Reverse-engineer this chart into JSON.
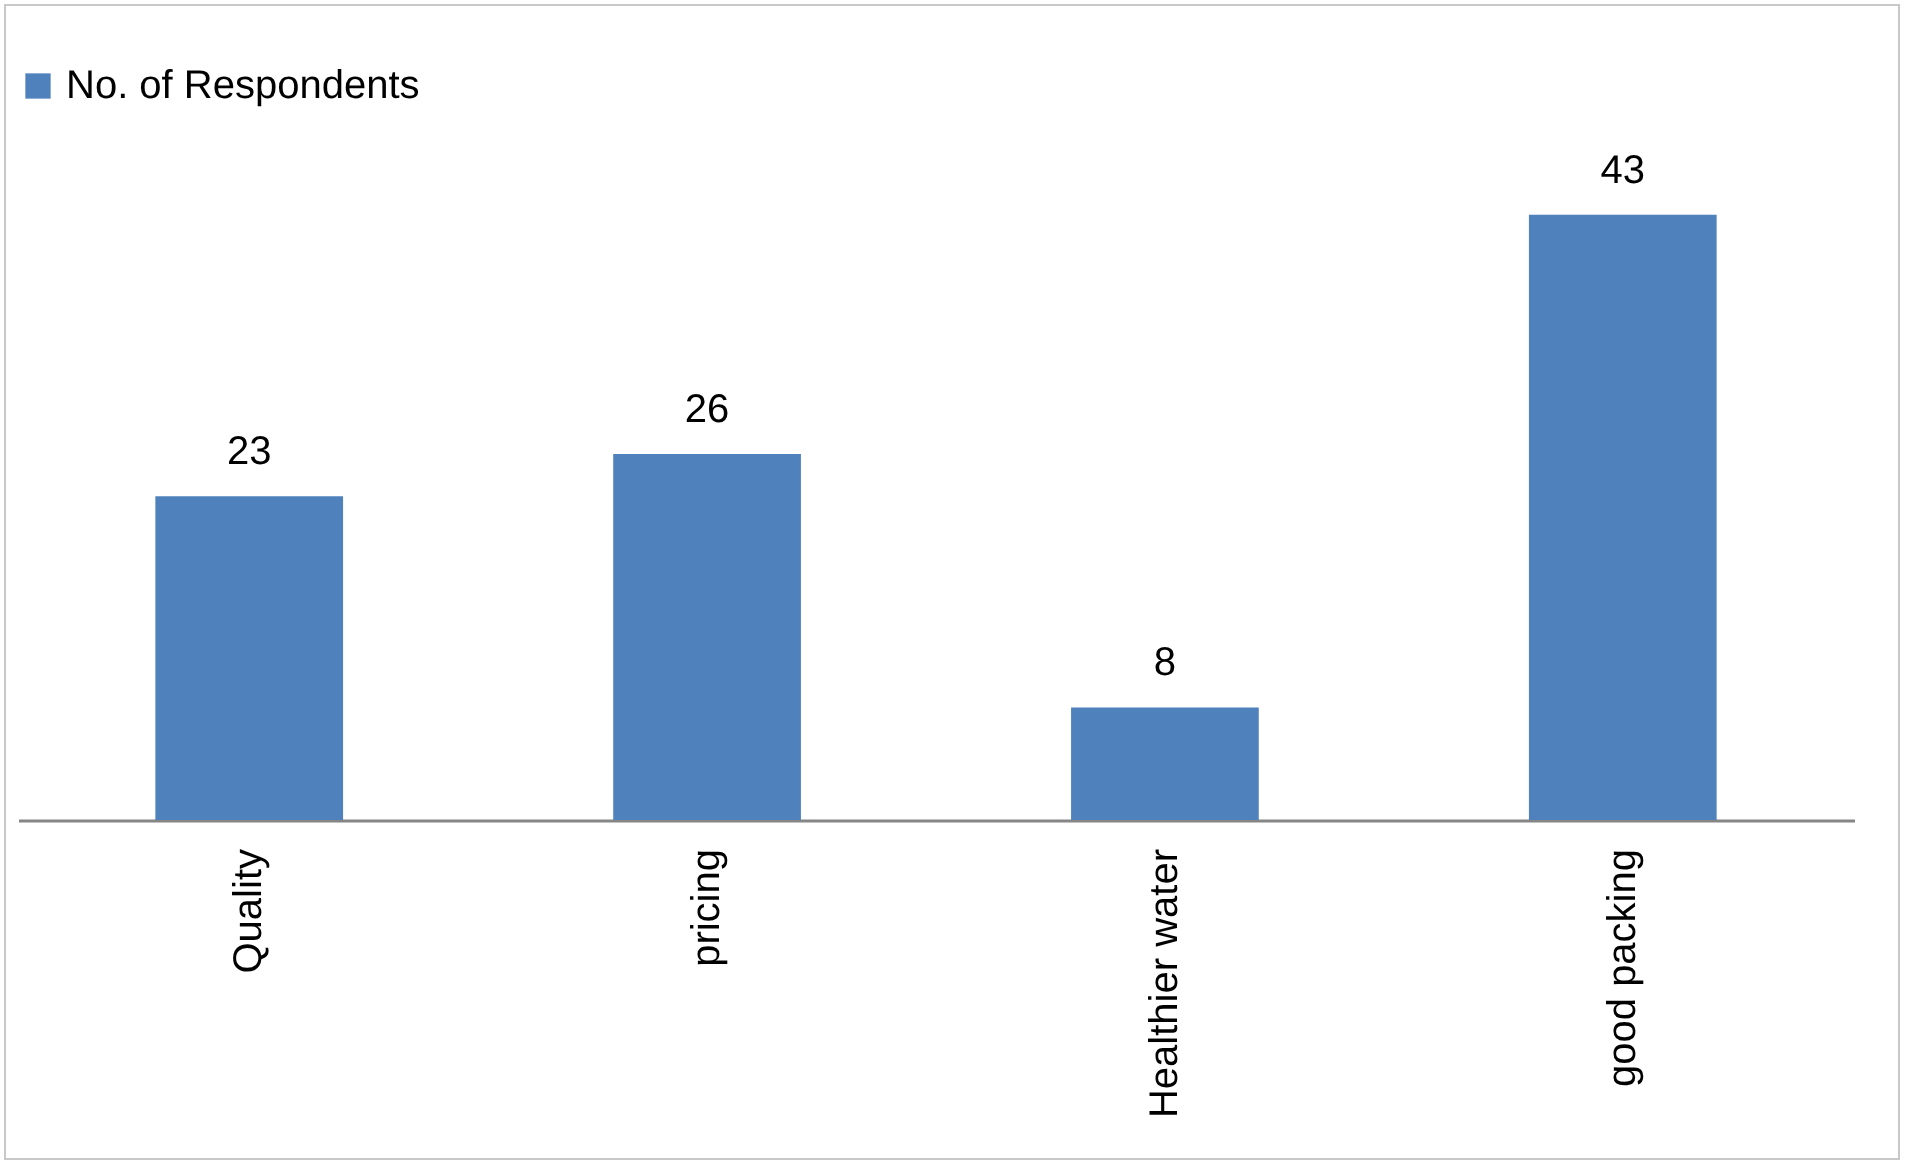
{
  "chart_data": {
    "type": "bar",
    "categories": [
      "Quality",
      "pricing",
      "Healthier water",
      "good packing"
    ],
    "series": [
      {
        "name": "No. of Respondents",
        "color": "#4f81bd",
        "values": [
          23,
          26,
          8,
          43
        ]
      }
    ],
    "data_labels": true,
    "legend": "top",
    "grid": false
  }
}
